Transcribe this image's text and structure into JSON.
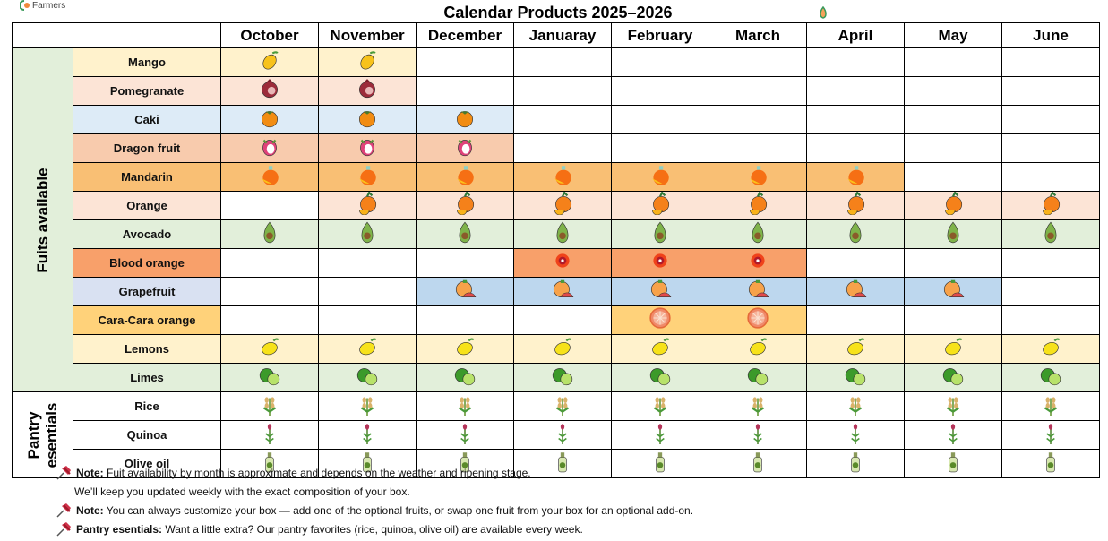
{
  "logo": {
    "text": "Farmers"
  },
  "title": "Calendar  Products 2025–2026",
  "months": [
    "October",
    "November",
    "December",
    "Januaray",
    "February",
    "March",
    "April",
    "May",
    "June"
  ],
  "categories": {
    "fruits": "Fuits available",
    "pantry": "Pantry esentials"
  },
  "rows": [
    {
      "label": "Mango",
      "icon": "mango-icon",
      "label_color": "#FFF2CC",
      "cell_color": "#FFF2CC",
      "available": [
        1,
        1,
        0,
        0,
        0,
        0,
        0,
        0,
        0
      ],
      "group": "fruits"
    },
    {
      "label": "Pomegranate",
      "icon": "pomegranate-icon",
      "label_color": "#FCE4D6",
      "cell_color": "#FCE4D6",
      "available": [
        1,
        1,
        0,
        0,
        0,
        0,
        0,
        0,
        0
      ],
      "group": "fruits"
    },
    {
      "label": "Caki",
      "icon": "persimmon-icon",
      "label_color": "#DDEBF7",
      "cell_color": "#DDEBF7",
      "available": [
        1,
        1,
        1,
        0,
        0,
        0,
        0,
        0,
        0
      ],
      "group": "fruits"
    },
    {
      "label": "Dragon fruit",
      "icon": "dragon-fruit-icon",
      "label_color": "#F8CBAD",
      "cell_color": "#F8CBAD",
      "available": [
        1,
        1,
        1,
        0,
        0,
        0,
        0,
        0,
        0
      ],
      "group": "fruits"
    },
    {
      "label": "Mandarin",
      "icon": "mandarin-icon",
      "label_color": "#F9BF74",
      "cell_color": "#F9BF74",
      "available": [
        1,
        1,
        1,
        1,
        1,
        1,
        1,
        0,
        0
      ],
      "group": "fruits"
    },
    {
      "label": "Orange",
      "icon": "orange-icon",
      "label_color": "#FCE4D6",
      "cell_color": "#FCE4D6",
      "available": [
        0,
        1,
        1,
        1,
        1,
        1,
        1,
        1,
        1
      ],
      "group": "fruits"
    },
    {
      "label": "Avocado",
      "icon": "avocado-icon",
      "label_color": "#E2EFDA",
      "cell_color": "#E2EFDA",
      "available": [
        1,
        1,
        1,
        1,
        1,
        1,
        1,
        1,
        1
      ],
      "group": "fruits"
    },
    {
      "label": "Blood orange",
      "icon": "blood-orange-icon",
      "label_color": "#F8A06A",
      "cell_color": "#F8A06A",
      "available": [
        0,
        0,
        0,
        1,
        1,
        1,
        0,
        0,
        0
      ],
      "group": "fruits"
    },
    {
      "label": "Grapefruit",
      "icon": "grapefruit-icon",
      "label_color": "#D9E1F2",
      "cell_color": "#BDD7EE",
      "available": [
        0,
        0,
        1,
        1,
        1,
        1,
        1,
        1,
        0
      ],
      "group": "fruits"
    },
    {
      "label": "Cara-Cara orange",
      "icon": "cara-cara-icon",
      "label_color": "#FFD27A",
      "cell_color": "#FFD27A",
      "available": [
        0,
        0,
        0,
        0,
        1,
        1,
        0,
        0,
        0
      ],
      "group": "fruits"
    },
    {
      "label": "Lemons",
      "icon": "lemon-icon",
      "label_color": "#FFF2CC",
      "cell_color": "#FFF2CC",
      "available": [
        1,
        1,
        1,
        1,
        1,
        1,
        1,
        1,
        1
      ],
      "group": "fruits"
    },
    {
      "label": "Limes",
      "icon": "lime-icon",
      "label_color": "#E2EFDA",
      "cell_color": "#E2EFDA",
      "available": [
        1,
        1,
        1,
        1,
        1,
        1,
        1,
        1,
        1
      ],
      "group": "fruits"
    },
    {
      "label": "Rice",
      "icon": "rice-icon",
      "label_color": "#FFFFFF",
      "cell_color": "#FFFFFF",
      "available": [
        1,
        1,
        1,
        1,
        1,
        1,
        1,
        1,
        1
      ],
      "group": "pantry"
    },
    {
      "label": "Quinoa",
      "icon": "quinoa-icon",
      "label_color": "#FFFFFF",
      "cell_color": "#FFFFFF",
      "available": [
        1,
        1,
        1,
        1,
        1,
        1,
        1,
        1,
        1
      ],
      "group": "pantry"
    },
    {
      "label": "Olive oil",
      "icon": "olive-oil-icon",
      "label_color": "#FFFFFF",
      "cell_color": "#FFFFFF",
      "available": [
        1,
        1,
        1,
        1,
        1,
        1,
        1,
        1,
        1
      ],
      "group": "pantry"
    }
  ],
  "notes": [
    {
      "bold": "Note:",
      "text": " Fuit availability by month is approximate and depends on the weather and ripening stage.",
      "pin": true
    },
    {
      "bold": "",
      "text": "We’ll keep you updated weekly with the exact composition of your box.",
      "pin": false
    },
    {
      "bold": "Note:",
      "text": " You can always customize your box — add one of the optional fruits, or swap one fruit from your box for an optional add-on.",
      "pin": true
    },
    {
      "bold": "Pantry esentials:",
      "text": " Want a little extra? Our pantry favorites (rice, quinoa, olive oil) are available every week.",
      "pin": true
    }
  ]
}
